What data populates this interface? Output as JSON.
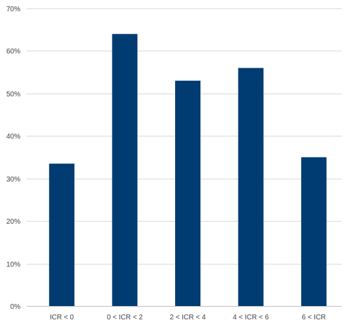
{
  "chart_data": {
    "type": "bar",
    "title": "",
    "xlabel": "",
    "ylabel": "",
    "categories": [
      "ICR < 0",
      "0 < ICR < 2",
      "2 < ICR < 4",
      "4 < ICR < 6",
      "6 < ICR"
    ],
    "values": [
      33.5,
      64,
      53,
      56,
      35
    ],
    "value_format": "percent",
    "ylim": [
      0,
      70
    ],
    "yticks": [
      "0%",
      "10%",
      "20%",
      "30%",
      "40%",
      "50%",
      "60%",
      "70%"
    ],
    "grid": true,
    "legend": "none",
    "bar_color": "#003b71"
  }
}
